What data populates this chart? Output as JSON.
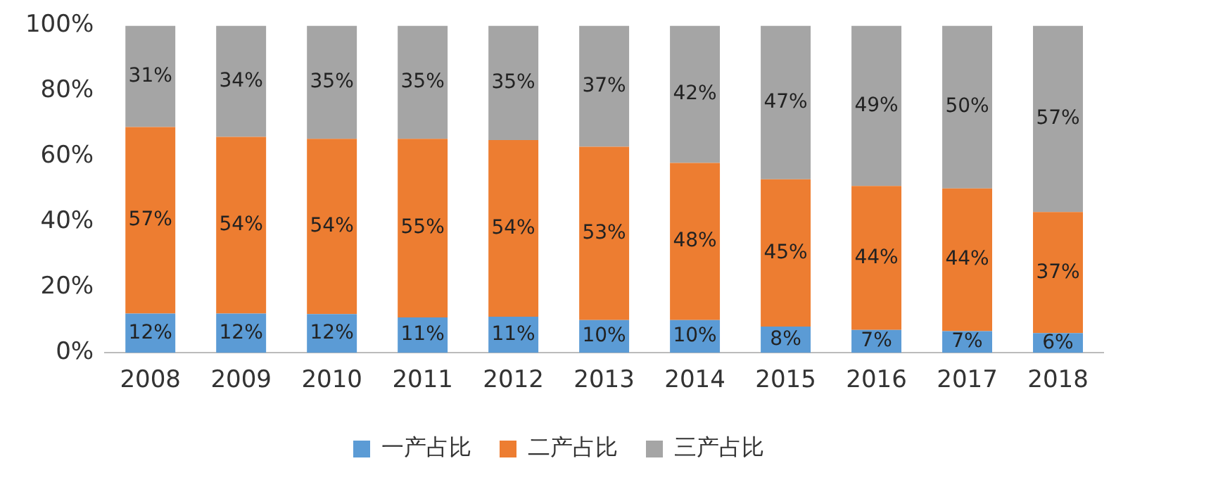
{
  "chart_data": {
    "type": "bar",
    "stacked": true,
    "categories": [
      "2008",
      "2009",
      "2010",
      "2011",
      "2012",
      "2013",
      "2014",
      "2015",
      "2016",
      "2017",
      "2018"
    ],
    "series": [
      {
        "name": "一产占比",
        "color": "#5b9bd5",
        "values": [
          12,
          12,
          11.8,
          10.8,
          11,
          10,
          10,
          8,
          7,
          6.6,
          6
        ],
        "value_labels": [
          "12%",
          "12%",
          "12%",
          "11%",
          "11%",
          "10%",
          "10%",
          "8%",
          "7%",
          "7%",
          "6%"
        ]
      },
      {
        "name": "二产占比",
        "color": "#ed7d31",
        "values": [
          57,
          54,
          53.6,
          54.6,
          54,
          53,
          48,
          45,
          44,
          43.6,
          37
        ],
        "value_labels": [
          "57%",
          "54%",
          "54%",
          "55%",
          "54%",
          "53%",
          "48%",
          "45%",
          "44%",
          "44%",
          "37%"
        ]
      },
      {
        "name": "三产占比",
        "color": "#a5a5a5",
        "values": [
          31,
          34,
          34.6,
          34.6,
          35,
          37,
          42,
          47,
          49,
          49.8,
          57
        ],
        "value_labels": [
          "31%",
          "34%",
          "35%",
          "35%",
          "35%",
          "37%",
          "42%",
          "47%",
          "49%",
          "50%",
          "57%"
        ]
      }
    ],
    "ylim": [
      0,
      100
    ],
    "yticks": [
      {
        "value": 0,
        "label": "0%"
      },
      {
        "value": 20,
        "label": "20%"
      },
      {
        "value": 40,
        "label": "40%"
      },
      {
        "value": 60,
        "label": "60%"
      },
      {
        "value": 80,
        "label": "80%"
      },
      {
        "value": 100,
        "label": "100%"
      }
    ],
    "grid": false,
    "legend": "bottom"
  }
}
